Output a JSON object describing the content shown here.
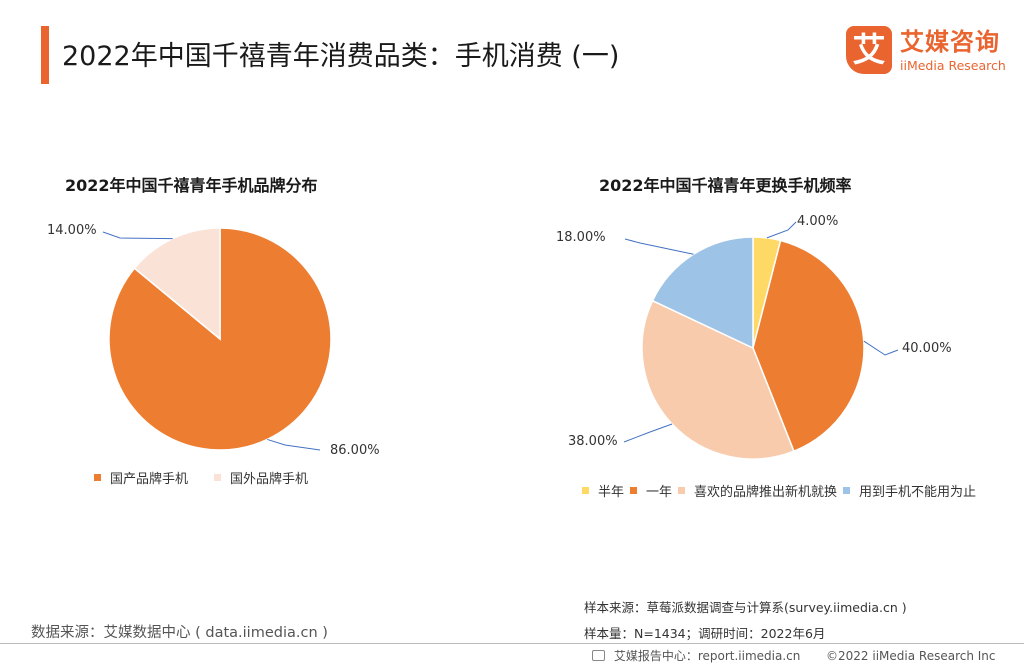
{
  "header": {
    "title": "2022年中国千禧青年消费品类：手机消费 (一)",
    "accent_color": "#e9642f"
  },
  "logo": {
    "mark": "艾",
    "name_cn": "艾媒咨询",
    "name_en": "iiMedia Research"
  },
  "chart_data": [
    {
      "type": "pie",
      "title": "2022年中国千禧青年手机品牌分布",
      "labels": [
        "国产品牌手机",
        "国外品牌手机"
      ],
      "values": [
        86.0,
        14.0
      ],
      "value_labels": [
        "86.00%",
        "14.00%"
      ],
      "colors": [
        "#ed7d31",
        "#fae2d6"
      ],
      "legend_position": "bottom"
    },
    {
      "type": "pie",
      "title": "2022年中国千禧青年更换手机频率",
      "labels": [
        "半年",
        "一年",
        "喜欢的品牌推出新机就换",
        "用到手机不能用为止"
      ],
      "values": [
        4.0,
        40.0,
        38.0,
        18.0
      ],
      "value_labels": [
        "4.00%",
        "40.00%",
        "38.00%",
        "18.00%"
      ],
      "colors": [
        "#ffd966",
        "#ed7d31",
        "#f8cbad",
        "#9dc3e6"
      ],
      "legend_position": "bottom"
    }
  ],
  "footer": {
    "data_source": "数据来源：艾媒数据中心 ( data.iimedia.cn )",
    "sample_source": "样本来源：草莓派数据调查与计算系(survey.iimedia.cn )",
    "sample_size": "样本量：N=1434；调研时间：2022年6月",
    "report_site": "艾媒报告中心：report.iimedia.cn",
    "copyright": "©2022  iiMedia Research Inc"
  }
}
